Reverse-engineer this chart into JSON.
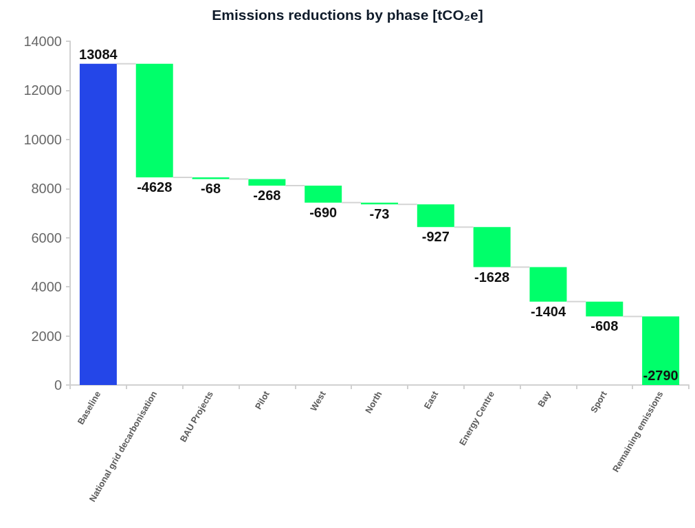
{
  "chart_data": {
    "type": "bar",
    "title": "Emissions reductions by phase [tCO₂e]",
    "categories": [
      "Baseline",
      "National grid decarbonisation",
      "BAU Projects",
      "Pilot",
      "West",
      "North",
      "East",
      "Energy Centre",
      "Bay",
      "Sport",
      "Remaining emissions"
    ],
    "values": [
      13084,
      -4628,
      -68,
      -268,
      -690,
      -73,
      -927,
      -1628,
      -1404,
      -608,
      -2790
    ],
    "base": [
      0,
      13084,
      8456,
      8388,
      8120,
      7430,
      7357,
      6430,
      4802,
      3398,
      2790
    ],
    "colors": [
      "#2446e8",
      "#00ff6a",
      "#00ff6a",
      "#00ff6a",
      "#00ff6a",
      "#00ff6a",
      "#00ff6a",
      "#00ff6a",
      "#00ff6a",
      "#00ff6a",
      "#00ff6a"
    ],
    "ylim": [
      0,
      14000
    ],
    "yticks": [
      0,
      2000,
      4000,
      6000,
      8000,
      10000,
      12000,
      14000
    ],
    "data_labels": true
  }
}
